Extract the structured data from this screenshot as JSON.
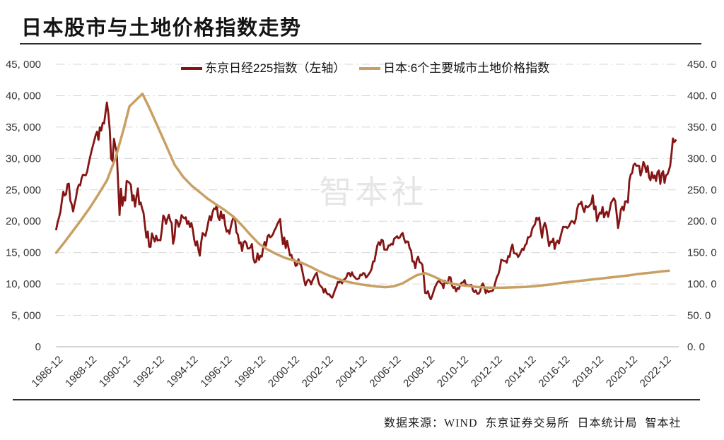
{
  "title": "日本股市与土地价格指数走势",
  "source": "数据来源：WIND 东京证券交易所 日本统计局 智本社",
  "watermark": "智本社",
  "chart_data": {
    "type": "line",
    "title": "日本股市与土地价格指数走势",
    "legend_position": "top",
    "grid": "horizontal-dashed",
    "left_axis": {
      "min": 0,
      "max": 45000,
      "tick_step": 5000,
      "tick_labels": [
        "0",
        "5, 000",
        "10, 000",
        "15, 000",
        "20, 000",
        "25, 000",
        "30, 000",
        "35, 000",
        "40, 000",
        "45, 000"
      ]
    },
    "right_axis": {
      "min": 0,
      "max": 450,
      "tick_step": 50,
      "tick_labels": [
        "0. 0",
        "50. 0",
        "100. 0",
        "150. 0",
        "200. 0",
        "250. 0",
        "300. 0",
        "350. 0",
        "400. 0",
        "450. 0"
      ]
    },
    "x_axis": {
      "tick_labels": [
        "1986-12",
        "1988-12",
        "1990-12",
        "1992-12",
        "1994-12",
        "1996-12",
        "1998-12",
        "2000-12",
        "2002-12",
        "2004-12",
        "2006-12",
        "2008-12",
        "2010-12",
        "2012-12",
        "2014-12",
        "2016-12",
        "2018-12",
        "2020-12",
        "2022-12"
      ],
      "start_year_decimal": 1986.9167,
      "years_per_tick": 2
    },
    "series": [
      {
        "name": "东京日经225指数（左轴）",
        "color": "#851515",
        "axis": "left",
        "start": "1986-12",
        "freq": "monthly",
        "values": [
          18701,
          19800,
          20600,
          21500,
          23200,
          24700,
          24100,
          24300,
          25900,
          26000,
          23300,
          22700,
          21564,
          22700,
          23700,
          25100,
          25800,
          25700,
          26800,
          27400,
          27360,
          27300,
          27900,
          29100,
          30159,
          31113,
          31986,
          32839,
          33713,
          34267,
          32949,
          34954,
          34431,
          35637,
          35549,
          37269,
          38916,
          37189,
          34592,
          29980,
          29585,
          33131,
          31940,
          31036,
          25978,
          20984,
          25194,
          22455,
          23849,
          23293,
          26409,
          26292,
          26111,
          25790,
          23291,
          24121,
          22336,
          23916,
          25222,
          22687,
          22984,
          22023,
          21339,
          19346,
          17391,
          18348,
          15952,
          15910,
          18061,
          17400,
          16767,
          17684,
          16925,
          17024,
          16953,
          18591,
          20919,
          20552,
          19590,
          20380,
          21027,
          20106,
          19703,
          16406,
          17417,
          20229,
          19997,
          19112,
          19725,
          20974,
          20643,
          20449,
          20629,
          19564,
          19990,
          19071,
          19723,
          18650,
          17053,
          16140,
          16806,
          15437,
          14517,
          16677,
          18117,
          17913,
          17655,
          18648,
          19868,
          20813,
          20125,
          21407,
          22041,
          21926,
          22531,
          20693,
          20167,
          21556,
          20467,
          21020,
          19361,
          18330,
          18557,
          18003,
          19151,
          20069,
          20605,
          20331,
          18229,
          17888,
          16459,
          16636,
          15259,
          16628,
          16831,
          16527,
          15641,
          15671,
          15830,
          16379,
          14108,
          13406,
          13565,
          14884,
          13842,
          14499,
          14368,
          15837,
          16702,
          16112,
          17530,
          17862,
          17430,
          17605,
          17942,
          18558,
          18934,
          19539,
          19959,
          20337,
          17974,
          16332,
          17411,
          15727,
          16861,
          15747,
          14540,
          14649,
          13786,
          13844,
          12884,
          12999,
          13934,
          13262,
          12969,
          11861,
          10714,
          9775,
          10366,
          10697,
          10543,
          9919,
          10572,
          11025,
          11492,
          11764,
          10622,
          9878,
          9619,
          9383,
          8640,
          9215,
          8579,
          8339,
          8363,
          7973,
          7831,
          8425,
          9083,
          9563,
          10343,
          10219,
          10559,
          10100,
          10677,
          10784,
          11041,
          11715,
          11761,
          11236,
          11858,
          11326,
          11082,
          10823,
          10772,
          10899,
          11489,
          11387,
          11740,
          11669,
          11009,
          11276,
          11584,
          11900,
          12414,
          13574,
          13606,
          14872,
          16111,
          16649,
          16205,
          17060,
          16906,
          15467,
          15505,
          15457,
          16141,
          16128,
          16399,
          16274,
          17226,
          17383,
          17604,
          17288,
          17400,
          17876,
          18138,
          17249,
          16569,
          16786,
          16738,
          15681,
          15308,
          13592,
          13603,
          12526,
          13850,
          14339,
          13481,
          13377,
          13073,
          11260,
          8577,
          8512,
          8860,
          7994,
          7568,
          8110,
          8828,
          9523,
          9958,
          10357,
          10493,
          10133,
          10035,
          9346,
          10546,
          10198,
          10126,
          11090,
          11057,
          9769,
          9383,
          9537,
          8824,
          9369,
          9202,
          9937,
          10229,
          10237,
          10624,
          9755,
          9850,
          9694,
          9816,
          9833,
          8955,
          8700,
          8988,
          8435,
          8455,
          8803,
          9723,
          10084,
          9521,
          8543,
          9007,
          8695,
          8840,
          8870,
          8928,
          9446,
          10395,
          11139,
          11559,
          12398,
          13861,
          13775,
          13677,
          13668,
          13389,
          14456,
          14328,
          15662,
          16291,
          14915,
          14841,
          14828,
          14304,
          14632,
          15162,
          15621,
          15425,
          16174,
          16414,
          17460,
          17451,
          17674,
          18798,
          19207,
          19520,
          20563,
          20236,
          20585,
          18890,
          17388,
          19083,
          19747,
          19034,
          17518,
          16027,
          16759,
          16666,
          17235,
          15576,
          16569,
          16887,
          16450,
          17425,
          18308,
          19114,
          19041,
          19119,
          18909,
          19197,
          19651,
          20033,
          19925,
          19646,
          20356,
          22012,
          22725,
          22765,
          23098,
          22068,
          21454,
          22468,
          22202,
          22305,
          22554,
          22865,
          24120,
          21920,
          22351,
          20015,
          20773,
          21385,
          21206,
          22259,
          20601,
          21276,
          21522,
          20704,
          21756,
          22927,
          23294,
          23657,
          23205,
          21143,
          18917,
          20194,
          21878,
          22288,
          21710,
          23140,
          23185,
          22977,
          26434,
          27444,
          27663,
          28966,
          29179,
          28813,
          28860,
          28792,
          27284,
          28090,
          29453,
          28893,
          27822,
          28792,
          27002,
          26527,
          27821,
          26848,
          27280,
          26393,
          27802,
          28092,
          25937,
          27587,
          27968,
          26095,
          27327,
          27446,
          28041,
          28856,
          30888,
          33189,
          32619,
          32900
        ]
      },
      {
        "name": "日本:6个主要城市土地价格指数",
        "color": "#c9a063",
        "axis": "right",
        "points": [
          [
            1986.92,
            150
          ],
          [
            1987.42,
            167
          ],
          [
            1987.92,
            185
          ],
          [
            1988.42,
            203
          ],
          [
            1988.92,
            222
          ],
          [
            1989.42,
            243
          ],
          [
            1989.92,
            265
          ],
          [
            1990.42,
            300
          ],
          [
            1990.92,
            348
          ],
          [
            1991.25,
            383
          ],
          [
            1992.02,
            403
          ],
          [
            1992.42,
            381
          ],
          [
            1992.92,
            351
          ],
          [
            1993.42,
            321
          ],
          [
            1993.92,
            290
          ],
          [
            1994.42,
            271
          ],
          [
            1994.92,
            257
          ],
          [
            1995.42,
            246
          ],
          [
            1995.92,
            235
          ],
          [
            1996.42,
            226
          ],
          [
            1996.92,
            217
          ],
          [
            1997.42,
            207
          ],
          [
            1997.92,
            193
          ],
          [
            1998.42,
            178
          ],
          [
            1998.92,
            164
          ],
          [
            1999.42,
            155
          ],
          [
            1999.92,
            148
          ],
          [
            2000.42,
            142
          ],
          [
            2000.92,
            138
          ],
          [
            2001.42,
            134
          ],
          [
            2001.92,
            128
          ],
          [
            2002.42,
            121
          ],
          [
            2002.92,
            115
          ],
          [
            2003.42,
            110
          ],
          [
            2003.92,
            105
          ],
          [
            2004.42,
            102
          ],
          [
            2004.92,
            99.5
          ],
          [
            2005.42,
            97.5
          ],
          [
            2005.92,
            96
          ],
          [
            2006.42,
            95
          ],
          [
            2006.92,
            96.5
          ],
          [
            2007.42,
            101
          ],
          [
            2007.92,
            109
          ],
          [
            2008.25,
            114
          ],
          [
            2008.75,
            117.5
          ],
          [
            2009.25,
            112
          ],
          [
            2009.75,
            105.5
          ],
          [
            2010.25,
            101
          ],
          [
            2010.75,
            98.5
          ],
          [
            2011.25,
            97
          ],
          [
            2011.75,
            95.5
          ],
          [
            2012.25,
            94.5
          ],
          [
            2012.75,
            94
          ],
          [
            2013.25,
            94
          ],
          [
            2013.75,
            94.5
          ],
          [
            2014.25,
            95
          ],
          [
            2014.75,
            95.5
          ],
          [
            2015.25,
            96.5
          ],
          [
            2015.75,
            98
          ],
          [
            2016.25,
            99.5
          ],
          [
            2016.75,
            101.5
          ],
          [
            2017.25,
            103
          ],
          [
            2017.75,
            104.5
          ],
          [
            2018.25,
            106
          ],
          [
            2018.75,
            107.5
          ],
          [
            2019.25,
            109
          ],
          [
            2019.75,
            110.5
          ],
          [
            2020.25,
            112
          ],
          [
            2020.75,
            113.5
          ],
          [
            2021.25,
            115.5
          ],
          [
            2021.75,
            117
          ],
          [
            2022.25,
            118.5
          ],
          [
            2022.75,
            120
          ],
          [
            2023.17,
            121
          ]
        ]
      }
    ]
  }
}
